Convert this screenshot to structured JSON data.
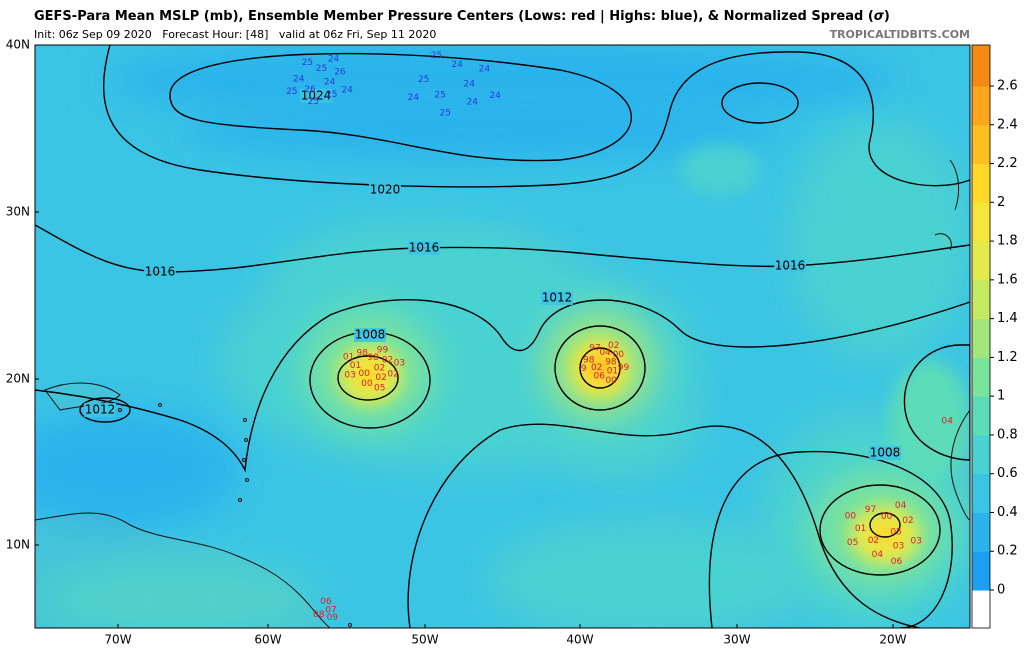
{
  "header": {
    "title": "GEFS-Para Mean MSLP (mb), Ensemble Member Pressure Centers (Lows: red | Highs: blue), & Normalized Spread (",
    "sigma": "σ",
    "title_end": ")",
    "subtitle": "Init: 06z Sep 09 2020   Forecast Hour: [48]   valid at 06z Fri, Sep 11 2020",
    "source": "TROPICALTIDBITS.COM"
  },
  "map": {
    "lat_labels": [
      "40N",
      "30N",
      "20N",
      "10N"
    ],
    "lon_labels": [
      "70W",
      "60W",
      "50W",
      "40W",
      "30W",
      "20W"
    ],
    "contour_labels": [
      "1024",
      "1020",
      "1016",
      "1016",
      "1016",
      "1012",
      "1012",
      "1008",
      "1008"
    ],
    "highs": [
      {
        "labels": [
          "24",
          "26",
          "25",
          "25",
          "24",
          "26",
          "25",
          "25",
          "24",
          "25",
          "24"
        ]
      },
      {
        "labels": [
          "24",
          "25",
          "24",
          "24",
          "25",
          "24",
          "25",
          "25",
          "24",
          "24"
        ]
      }
    ],
    "lows": [
      {
        "labels": [
          "02",
          "00",
          "98",
          "02",
          "01",
          "02",
          "00",
          "98",
          "02",
          "03",
          "99",
          "05",
          "01",
          "03"
        ]
      },
      {
        "labels": [
          "98",
          "02",
          "04",
          "01",
          "98",
          "00",
          "06",
          "97",
          "99",
          "9",
          "02",
          "00"
        ]
      },
      {
        "labels": [
          "05",
          "02",
          "00",
          "03",
          "01",
          "02",
          "04",
          "97",
          "03",
          "05",
          "04",
          "06",
          "00"
        ]
      },
      {
        "labels": [
          "07",
          "08",
          "06",
          "09"
        ]
      },
      {
        "labels": [
          "02",
          "04"
        ]
      }
    ],
    "colorbar": {
      "ticks": [
        0,
        0.2,
        0.4,
        0.6,
        0.8,
        1,
        1.2,
        1.4,
        1.6,
        1.8,
        2,
        2.2,
        2.4,
        2.6
      ],
      "colors": [
        "#1c9ff0",
        "#2cb3ec",
        "#3cc4e4",
        "#4ad2d2",
        "#5cdcb8",
        "#7ae39c",
        "#a2e67c",
        "#c6e962",
        "#e2ea4e",
        "#f4e63a",
        "#ffd828",
        "#ffbf22",
        "#ffa51e",
        "#f48a14"
      ]
    }
  }
}
